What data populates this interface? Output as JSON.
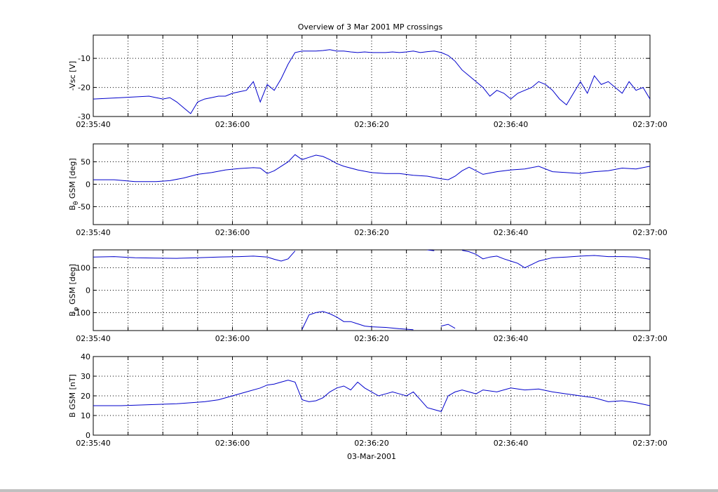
{
  "figure": {
    "title": "Overview of 3 Mar 2001 MP crossings",
    "xlabel": "03-Mar-2001",
    "background": "#ffffff",
    "window_background": "#c0c0c0",
    "line_color": "#0000cc",
    "grid_color": "#000000"
  },
  "chart_data": [
    {
      "type": "line",
      "ylabel": "-Vsc [V]",
      "ylim": [
        -30,
        -2
      ],
      "yticks": [
        -30,
        -20,
        -10
      ],
      "xlim": [
        "02:35:40",
        "02:37:00"
      ],
      "xticks": [
        "02:35:40",
        "02:36:00",
        "02:36:20",
        "02:36:40",
        "02:37:00"
      ],
      "grid": true,
      "x_seconds_after_023540": [
        0,
        4,
        8,
        10,
        11,
        12,
        13,
        14,
        15,
        16,
        17,
        18,
        19,
        20,
        21,
        22,
        23,
        24,
        25,
        26,
        27,
        28,
        29,
        30,
        31,
        32,
        33,
        34,
        35,
        36,
        37,
        38,
        39,
        40,
        41,
        42,
        43,
        44,
        45,
        46,
        47,
        48,
        49,
        50,
        51,
        52,
        53,
        54,
        55,
        56,
        57,
        58,
        59,
        60,
        61,
        62,
        63,
        64,
        65,
        66,
        67,
        68,
        69,
        70,
        71,
        72,
        73,
        74,
        75,
        76,
        77,
        78,
        79,
        80
      ],
      "values": [
        -24,
        -23.5,
        -23,
        -24,
        -23.5,
        -25,
        -27,
        -29,
        -25,
        -24,
        -23.5,
        -23,
        -23,
        -22,
        -21.5,
        -21,
        -18,
        -25,
        -19,
        -21,
        -17,
        -12,
        -8,
        -7.5,
        -7.5,
        -7.5,
        -7.3,
        -7,
        -7.5,
        -7.5,
        -7.8,
        -8,
        -7.8,
        -8,
        -8,
        -8,
        -7.8,
        -8,
        -7.8,
        -7.5,
        -8,
        -7.7,
        -7.5,
        -8,
        -9,
        -11,
        -14,
        -16,
        -18,
        -20,
        -23,
        -21,
        -22,
        -24,
        -22,
        -21,
        -20,
        -18,
        -19,
        -21,
        -24,
        -26,
        -22,
        -18,
        -22,
        -16,
        -19,
        -18,
        -20,
        -22,
        -18,
        -21,
        -20,
        -24
      ]
    },
    {
      "type": "line",
      "ylabel": "B_theta GSM [deg]",
      "ylim": [
        -90,
        90
      ],
      "yticks": [
        -50,
        0,
        50
      ],
      "xlim": [
        "02:35:40",
        "02:37:00"
      ],
      "xticks": [
        "02:35:40",
        "02:36:00",
        "02:36:20",
        "02:36:40",
        "02:37:00"
      ],
      "grid": true,
      "x_seconds_after_023540": [
        0,
        3,
        6,
        9,
        11,
        13,
        15,
        17,
        19,
        21,
        23,
        24,
        25,
        26,
        27,
        28,
        29,
        30,
        31,
        32,
        33,
        34,
        35,
        36,
        38,
        40,
        42,
        44,
        46,
        48,
        50,
        51,
        52,
        53,
        54,
        56,
        58,
        60,
        62,
        64,
        66,
        68,
        70,
        72,
        74,
        76,
        78,
        80
      ],
      "values": [
        10,
        10,
        6,
        6,
        8,
        14,
        22,
        26,
        32,
        35,
        37,
        36,
        24,
        30,
        40,
        50,
        66,
        55,
        60,
        65,
        62,
        55,
        46,
        40,
        32,
        26,
        24,
        24,
        20,
        18,
        12,
        10,
        18,
        30,
        38,
        22,
        28,
        32,
        34,
        40,
        28,
        26,
        24,
        28,
        30,
        36,
        34,
        40
      ]
    },
    {
      "type": "line",
      "ylabel": "B_phi GSM [deg]",
      "ylim": [
        -180,
        180
      ],
      "yticks": [
        -100,
        0,
        100
      ],
      "xlim": [
        "02:35:40",
        "02:37:00"
      ],
      "xticks": [
        "02:35:40",
        "02:36:00",
        "02:36:20",
        "02:36:40",
        "02:37:00"
      ],
      "grid": true,
      "wraps_at": 180,
      "x_seconds_after_023540": [
        0,
        3,
        6,
        9,
        12,
        15,
        18,
        21,
        23,
        25,
        26,
        27,
        28,
        29,
        30,
        31,
        32,
        33,
        34,
        35,
        36,
        37,
        38,
        39,
        40,
        42,
        44,
        46,
        48,
        49,
        50,
        51,
        52,
        53,
        54,
        55,
        56,
        57,
        58,
        59,
        60,
        61,
        62,
        64,
        66,
        68,
        70,
        72,
        74,
        76,
        78,
        80
      ],
      "values": [
        148,
        150,
        145,
        143,
        142,
        145,
        148,
        150,
        152,
        148,
        138,
        130,
        140,
        175,
        -175,
        -110,
        -100,
        -95,
        -105,
        -120,
        -140,
        -140,
        -150,
        -160,
        -163,
        -166,
        -172,
        -176,
        180,
        176,
        -160,
        -152,
        -170,
        178,
        172,
        160,
        140,
        148,
        152,
        140,
        130,
        120,
        100,
        130,
        145,
        148,
        152,
        155,
        150,
        150,
        148,
        138
      ]
    },
    {
      "type": "line",
      "ylabel": "B GSM [nT]",
      "ylim": [
        0,
        40
      ],
      "yticks": [
        0,
        10,
        20,
        30,
        40
      ],
      "xlim": [
        "02:35:40",
        "02:37:00"
      ],
      "xticks": [
        "02:35:40",
        "02:36:00",
        "02:36:20",
        "02:36:40",
        "02:37:00"
      ],
      "grid": true,
      "x_seconds_after_023540": [
        0,
        4,
        8,
        12,
        16,
        18,
        20,
        22,
        24,
        25,
        26,
        27,
        28,
        29,
        30,
        31,
        32,
        33,
        34,
        35,
        36,
        37,
        38,
        39,
        40,
        41,
        42,
        43,
        44,
        45,
        46,
        47,
        48,
        49,
        50,
        51,
        52,
        53,
        54,
        55,
        56,
        58,
        60,
        62,
        64,
        66,
        68,
        70,
        72,
        74,
        76,
        78,
        80
      ],
      "values": [
        15,
        15,
        15.5,
        16,
        17,
        18,
        20,
        22,
        24,
        25.5,
        26,
        27,
        28,
        27,
        18,
        17,
        17.5,
        19,
        22,
        24,
        25,
        23,
        27,
        24,
        22,
        20,
        21,
        22,
        21,
        20,
        22,
        18,
        14,
        13,
        12,
        20,
        22,
        23,
        22,
        21,
        23,
        22,
        24,
        23,
        23.5,
        22,
        21,
        20,
        19,
        17,
        17.5,
        16.5,
        15
      ]
    }
  ]
}
